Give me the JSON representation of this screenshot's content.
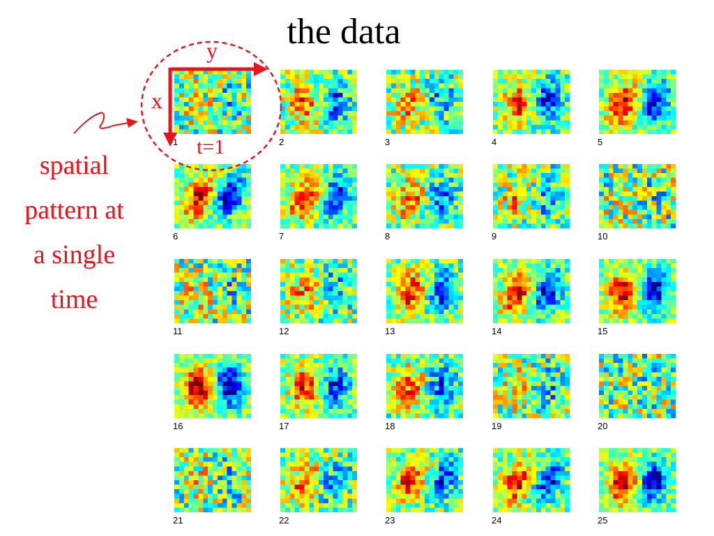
{
  "slide": {
    "title": "the data"
  },
  "annotation": {
    "x_label": "x",
    "y_label": "y",
    "t_label": "t=1",
    "caption_lines": [
      "spatial",
      "pattern at",
      "a single",
      "time"
    ],
    "color": "#e8141b"
  },
  "panels": {
    "labels": [
      "1",
      "2",
      "3",
      "4",
      "5",
      "6",
      "7",
      "8",
      "9",
      "10",
      "11",
      "12",
      "13",
      "14",
      "15",
      "16",
      "17",
      "18",
      "19",
      "20",
      "21",
      "22",
      "23",
      "24",
      "25"
    ],
    "signal_strength": [
      0.15,
      0.55,
      0.45,
      0.7,
      0.85,
      0.9,
      0.8,
      0.6,
      0.35,
      0.1,
      0.2,
      0.45,
      0.75,
      0.85,
      0.95,
      1.0,
      0.75,
      0.6,
      0.35,
      0.1,
      0.2,
      0.55,
      0.7,
      0.8,
      0.95
    ],
    "tilt": [
      0.0,
      0.0,
      0.0,
      0.1,
      0.3,
      0.45,
      0.35,
      0.2,
      0.1,
      0.0,
      0.0,
      0.0,
      0.15,
      0.35,
      0.05,
      0.0,
      0.0,
      0.0,
      0.1,
      0.0,
      0.1,
      0.45,
      0.5,
      0.35,
      0.15
    ]
  }
}
